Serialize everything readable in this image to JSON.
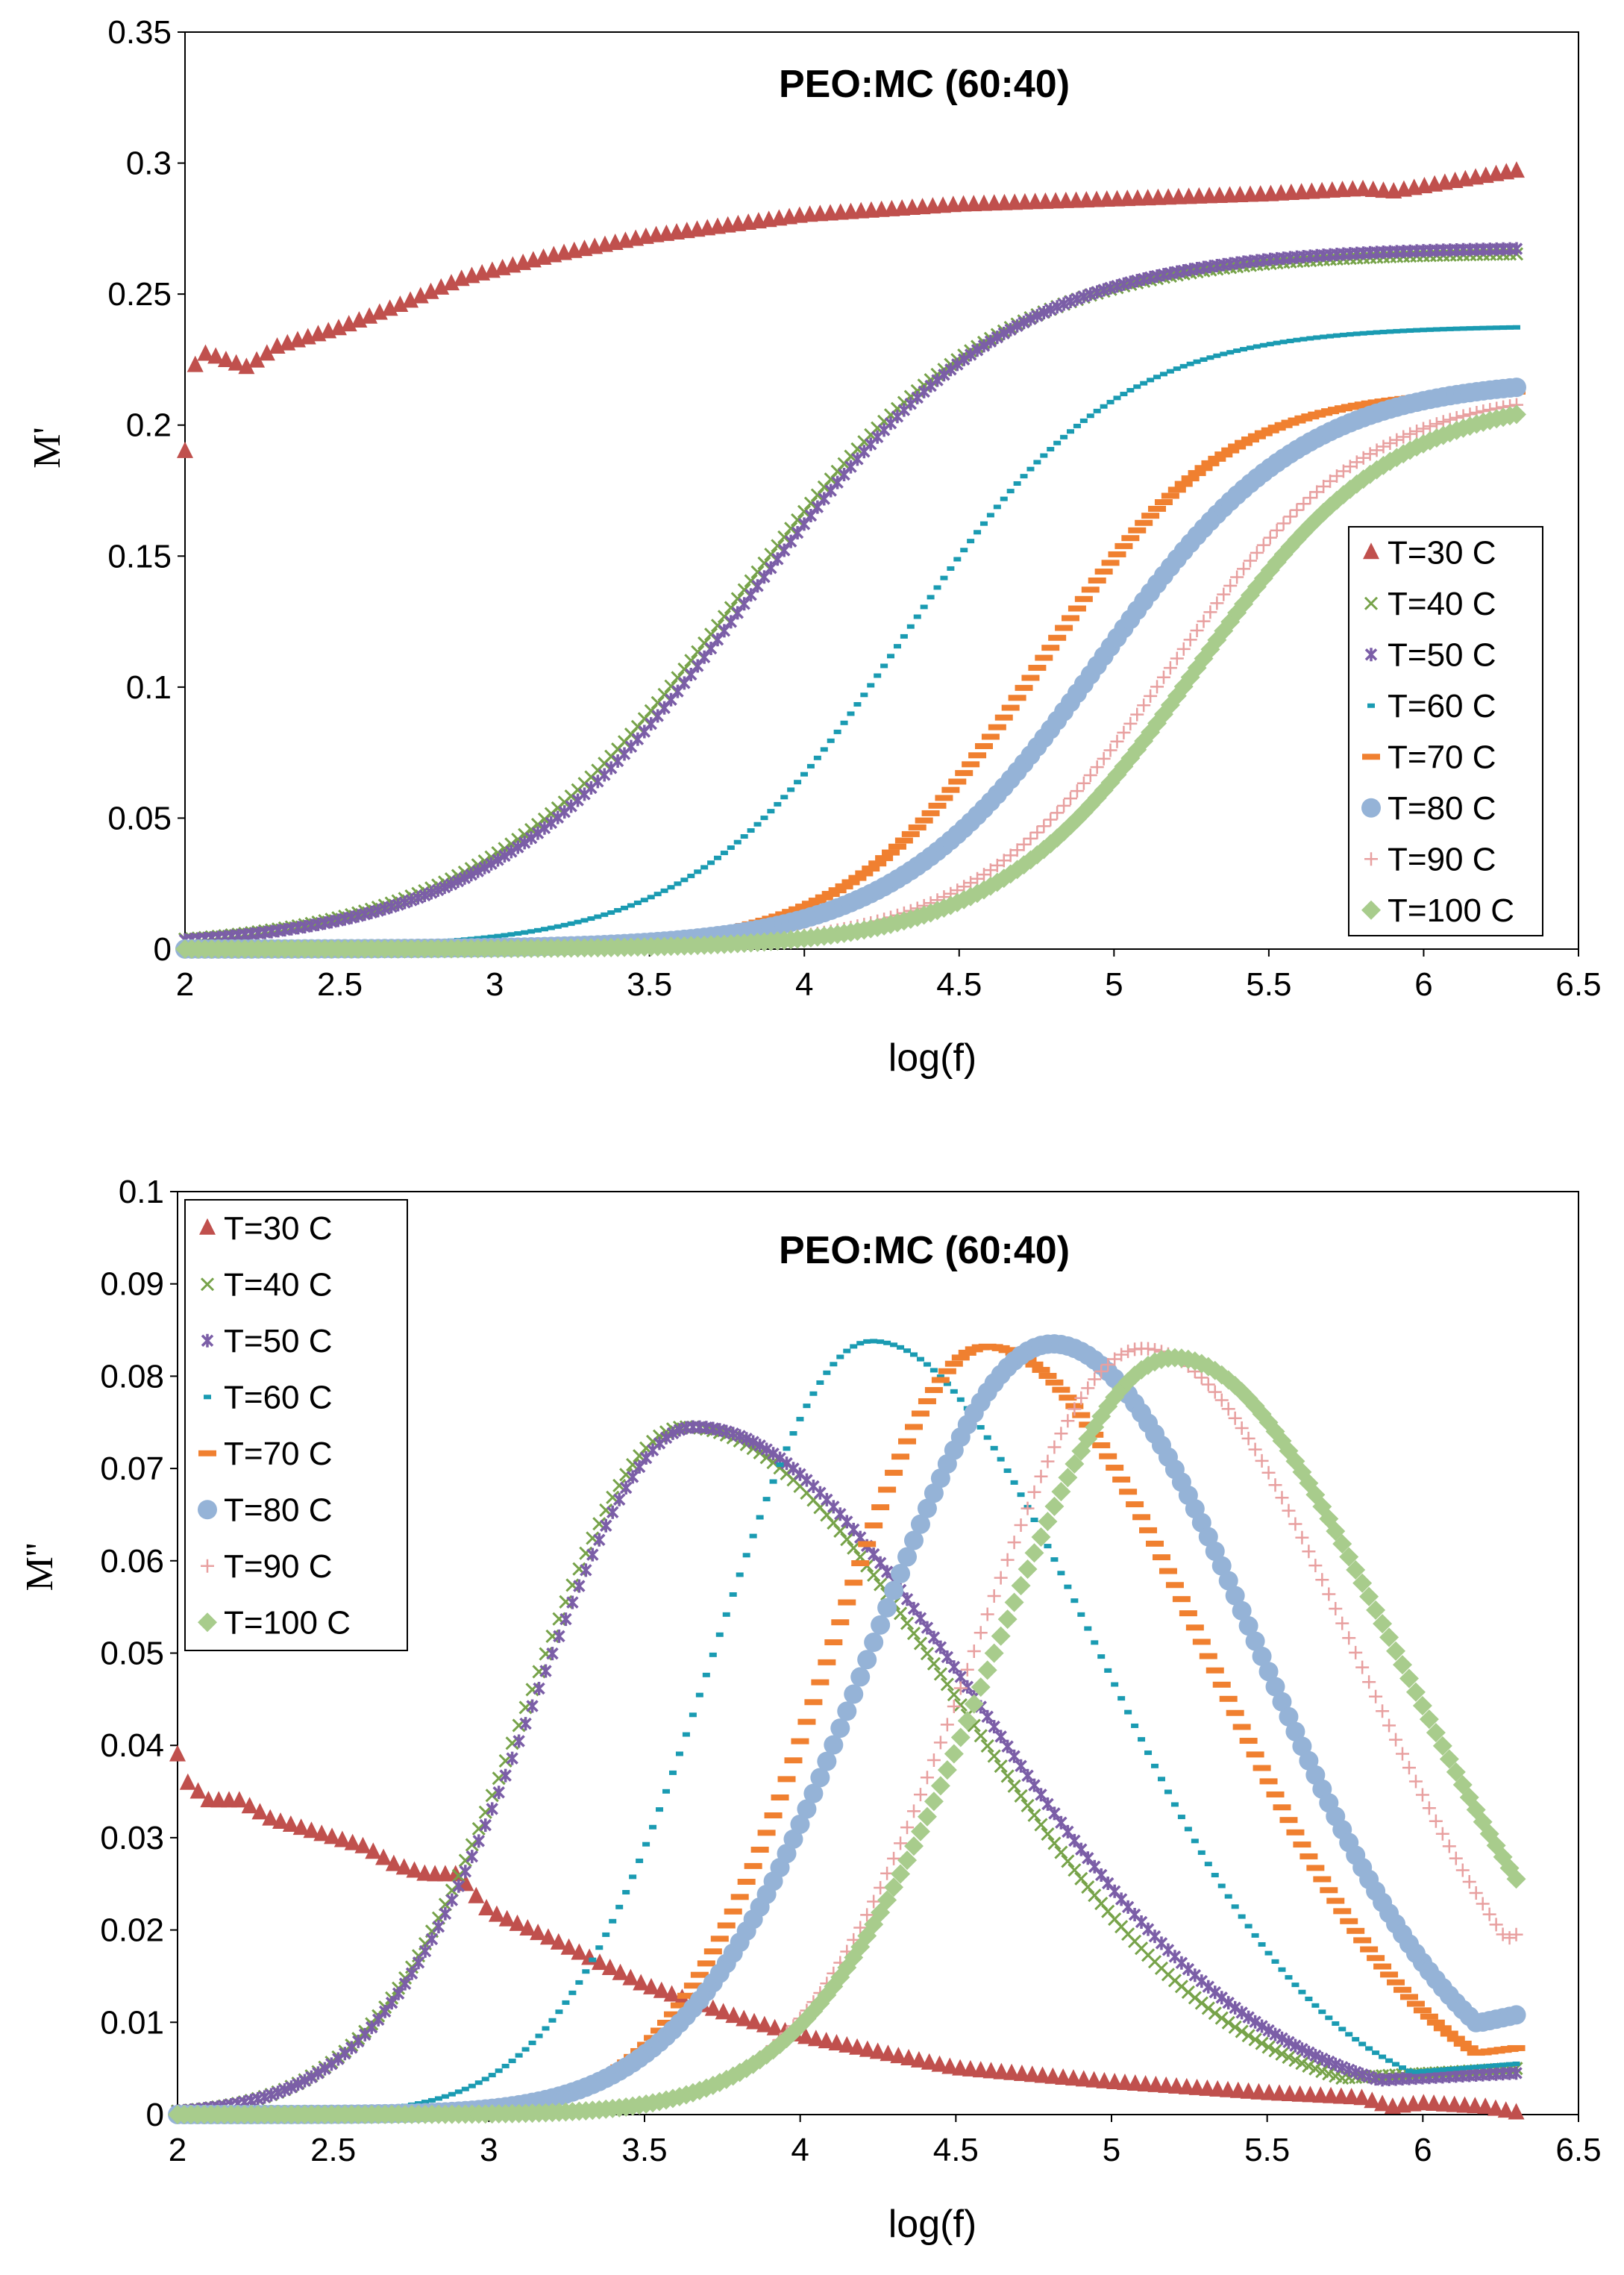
{
  "colors": {
    "T30": "#C0504D",
    "T40": "#77A34A",
    "T50": "#7B5EA7",
    "T60": "#1A9BB2",
    "T70": "#F08030",
    "T80": "#95B3D7",
    "T90": "#E8A0A0",
    "T100": "#A8CC8C"
  },
  "chart_data": [
    {
      "type": "scatter",
      "title": "PEO:MC (60:40)",
      "xlabel": "log(f)",
      "ylabel": "M'",
      "xlim": [
        2,
        6.5
      ],
      "ylim": [
        0,
        0.35
      ],
      "xticks": [
        "2",
        "2.5",
        "3",
        "3.5",
        "4",
        "4.5",
        "5",
        "5.5",
        "6",
        "6.5"
      ],
      "yticks": [
        "0",
        "0.05",
        "0.1",
        "0.15",
        "0.2",
        "0.25",
        "0.3",
        "0.35"
      ],
      "legend_position": "bottom-right",
      "x_range": [
        2.0,
        6.3
      ],
      "series": [
        {
          "name": "T=30 C",
          "marker": "triangle",
          "color_key": "T30",
          "x": [
            2.0,
            2.02,
            2.04,
            2.1,
            2.2,
            2.3,
            2.5,
            2.7,
            2.9,
            3.0,
            3.2,
            3.5,
            4.0,
            4.5,
            5.0,
            5.5,
            5.8,
            5.9,
            6.0,
            6.3
          ],
          "y": [
            0.19,
            0.213,
            0.228,
            0.226,
            0.222,
            0.23,
            0.237,
            0.246,
            0.256,
            0.259,
            0.265,
            0.272,
            0.28,
            0.284,
            0.286,
            0.288,
            0.29,
            0.289,
            0.291,
            0.297
          ]
        },
        {
          "name": "T=40 C",
          "marker": "x",
          "color_key": "T40",
          "logistic": {
            "low": 0.0,
            "high": 0.266,
            "center": 3.78,
            "width": 0.42
          }
        },
        {
          "name": "T=50 C",
          "marker": "star",
          "color_key": "T50",
          "logistic": {
            "low": 0.0,
            "high": 0.268,
            "center": 3.82,
            "width": 0.42
          }
        },
        {
          "name": "T=60 C",
          "marker": "dash",
          "color_key": "T60",
          "logistic": {
            "low": 0.0,
            "high": 0.238,
            "center": 4.32,
            "width": 0.34
          }
        },
        {
          "name": "T=70 C",
          "marker": "bar",
          "color_key": "T70",
          "logistic": {
            "low": 0.0,
            "high": 0.214,
            "center": 4.75,
            "width": 0.3
          }
        },
        {
          "name": "T=80 C",
          "marker": "circle",
          "color_key": "T80",
          "logistic": {
            "low": 0.0,
            "high": 0.218,
            "center": 4.95,
            "width": 0.33
          }
        },
        {
          "name": "T=90 C",
          "marker": "plus",
          "color_key": "T90",
          "logistic": {
            "low": 0.0,
            "high": 0.214,
            "center": 5.18,
            "width": 0.32
          }
        },
        {
          "name": "T=100 C",
          "marker": "diamond",
          "color_key": "T100",
          "logistic": {
            "low": 0.0,
            "high": 0.212,
            "center": 5.26,
            "width": 0.32
          }
        }
      ]
    },
    {
      "type": "scatter",
      "title": "PEO:MC (60:40)",
      "xlabel": "log(f)",
      "ylabel": "M''",
      "xlim": [
        2,
        6.5
      ],
      "ylim": [
        0,
        0.1
      ],
      "xticks": [
        "2",
        "2.5",
        "3",
        "3.5",
        "4",
        "4.5",
        "5",
        "5.5",
        "6",
        "6.5"
      ],
      "yticks": [
        "0",
        "0.01",
        "0.02",
        "0.03",
        "0.04",
        "0.05",
        "0.06",
        "0.07",
        "0.08",
        "0.09",
        "0.1"
      ],
      "legend_position": "top-left",
      "x_range": [
        2.0,
        6.3
      ],
      "series": [
        {
          "name": "T=30 C",
          "marker": "triangle",
          "color_key": "T30",
          "x": [
            2.0,
            2.03,
            2.1,
            2.2,
            2.3,
            2.4,
            2.5,
            2.6,
            2.7,
            2.8,
            2.9,
            3.0,
            3.2,
            3.5,
            3.8,
            4.0,
            4.5,
            5.0,
            5.5,
            5.8,
            5.9,
            6.0,
            6.2,
            6.3
          ],
          "y": [
            0.039,
            0.036,
            0.034,
            0.034,
            0.032,
            0.031,
            0.03,
            0.029,
            0.027,
            0.026,
            0.026,
            0.022,
            0.019,
            0.014,
            0.0105,
            0.0085,
            0.005,
            0.0035,
            0.0023,
            0.0018,
            0.0008,
            0.0012,
            0.0008,
            0.0002
          ]
        },
        {
          "name": "T=40 C",
          "marker": "x",
          "color_key": "T40",
          "peak": {
            "center": 3.63,
            "height": 0.0745,
            "wl": 0.5,
            "wr": 0.87,
            "tail": 0.005
          }
        },
        {
          "name": "T=50 C",
          "marker": "star",
          "color_key": "T50",
          "peak": {
            "center": 3.66,
            "height": 0.0745,
            "wl": 0.51,
            "wr": 0.9,
            "tail": 0.0045
          }
        },
        {
          "name": "T=60 C",
          "marker": "dash",
          "color_key": "T60",
          "peak": {
            "center": 4.23,
            "height": 0.0838,
            "wl": 0.5,
            "wr": 0.72,
            "tail": 0.0055
          }
        },
        {
          "name": "T=70 C",
          "marker": "bar",
          "color_key": "T70",
          "peak": {
            "center": 4.6,
            "height": 0.0832,
            "wl": 0.5,
            "wr": 0.7,
            "tail": 0.0072
          }
        },
        {
          "name": "T=80 C",
          "marker": "circle",
          "color_key": "T80",
          "peak": {
            "center": 4.81,
            "height": 0.0835,
            "wl": 0.58,
            "wr": 0.66,
            "tail": 0.0108
          }
        },
        {
          "name": "T=90 C",
          "marker": "plus",
          "color_key": "T90",
          "peak": {
            "center": 5.1,
            "height": 0.083,
            "wl": 0.54,
            "wr": 0.68,
            "tail": 0.0195
          }
        },
        {
          "name": "T=100 C",
          "marker": "diamond",
          "color_key": "T100",
          "peak": {
            "center": 5.2,
            "height": 0.082,
            "wl": 0.58,
            "wr": 0.72,
            "tail": 0.0235
          }
        }
      ]
    }
  ]
}
